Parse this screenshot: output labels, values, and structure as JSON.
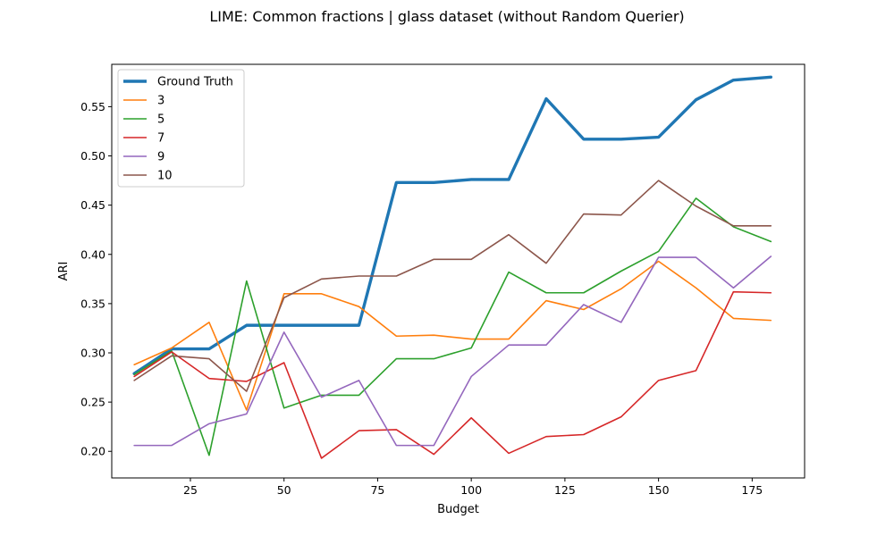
{
  "chart_data": {
    "type": "line",
    "title": "LIME: Common fractions | glass dataset (without Random Querier)",
    "xlabel": "Budget",
    "ylabel": "ARI",
    "xlim": [
      4,
      189
    ],
    "ylim": [
      0.173,
      0.593
    ],
    "xticks": [
      25,
      50,
      75,
      100,
      125,
      150,
      175
    ],
    "yticks": [
      0.2,
      0.25,
      0.3,
      0.35,
      0.4,
      0.45,
      0.5,
      0.55
    ],
    "grid": false,
    "legend_position": "top-left",
    "x": [
      10,
      20,
      30,
      40,
      50,
      60,
      70,
      80,
      90,
      100,
      110,
      120,
      130,
      140,
      150,
      160,
      170,
      180
    ],
    "series": [
      {
        "name": "Ground Truth",
        "color": "#1f77b4",
        "bold": true,
        "values": [
          0.279,
          0.304,
          0.304,
          0.328,
          0.328,
          0.328,
          0.328,
          0.473,
          0.473,
          0.476,
          0.476,
          0.558,
          0.517,
          0.517,
          0.519,
          0.557,
          0.577,
          0.58
        ]
      },
      {
        "name": "3",
        "color": "#ff7f0e",
        "values": [
          0.288,
          0.305,
          0.331,
          0.242,
          0.36,
          0.36,
          0.347,
          0.317,
          0.318,
          0.314,
          0.314,
          0.353,
          0.344,
          0.365,
          0.393,
          0.366,
          0.335,
          0.333
        ]
      },
      {
        "name": "5",
        "color": "#2ca02c",
        "values": [
          0.278,
          0.302,
          0.196,
          0.373,
          0.244,
          0.257,
          0.257,
          0.294,
          0.294,
          0.305,
          0.382,
          0.361,
          0.361,
          0.383,
          0.403,
          0.457,
          0.428,
          0.413
        ]
      },
      {
        "name": "7",
        "color": "#d62728",
        "values": [
          0.276,
          0.301,
          0.274,
          0.271,
          0.29,
          0.193,
          0.221,
          0.222,
          0.197,
          0.234,
          0.198,
          0.215,
          0.217,
          0.235,
          0.272,
          0.282,
          0.362,
          0.361
        ]
      },
      {
        "name": "9",
        "color": "#9467bd",
        "values": [
          0.206,
          0.206,
          0.228,
          0.238,
          0.321,
          0.255,
          0.272,
          0.206,
          0.206,
          0.276,
          0.308,
          0.308,
          0.349,
          0.331,
          0.397,
          0.397,
          0.366,
          0.398
        ]
      },
      {
        "name": "10",
        "color": "#8c564b",
        "values": [
          0.272,
          0.297,
          0.294,
          0.261,
          0.356,
          0.375,
          0.378,
          0.378,
          0.395,
          0.395,
          0.42,
          0.391,
          0.441,
          0.44,
          0.475,
          0.449,
          0.429,
          0.429
        ]
      }
    ]
  }
}
